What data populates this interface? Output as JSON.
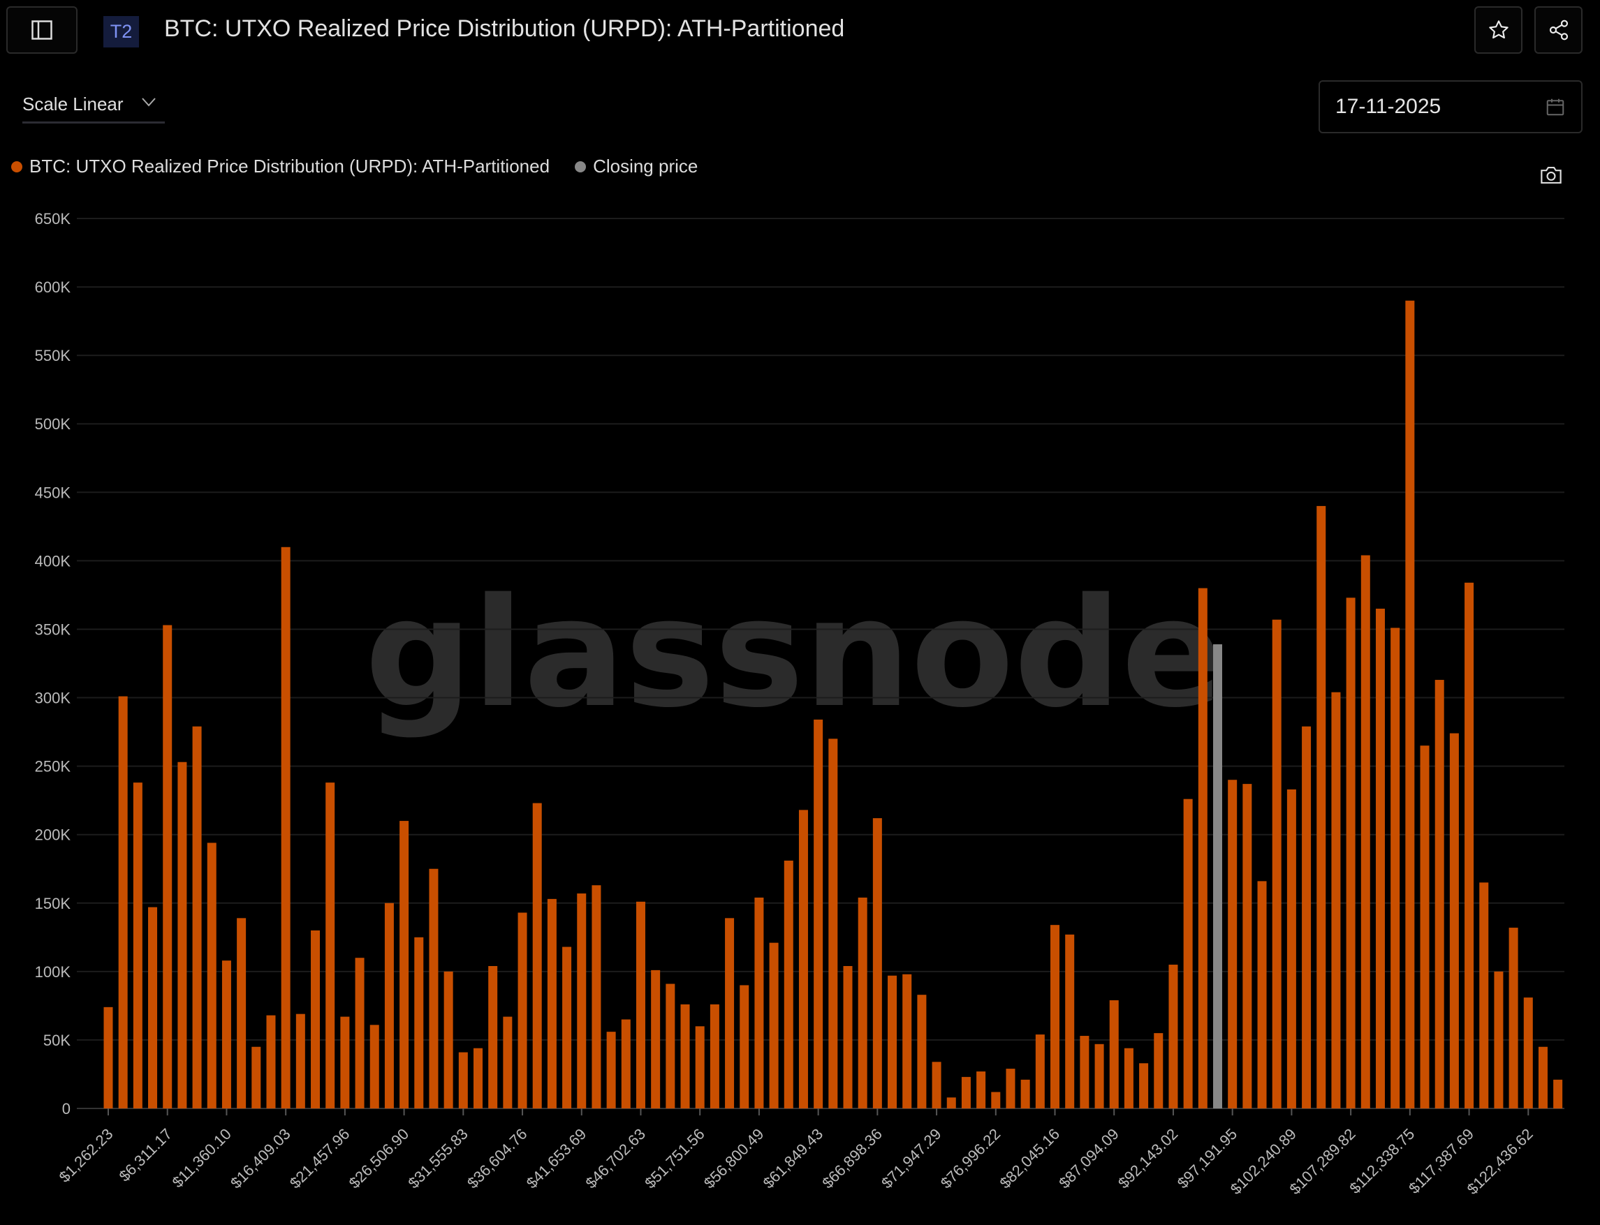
{
  "header": {
    "badge": "T2",
    "title": "BTC: UTXO Realized Price Distribution (URPD): ATH-Partitioned"
  },
  "controls": {
    "scale_label": "Scale Linear",
    "date_value": "17-11-2025"
  },
  "legend": [
    {
      "label": "BTC: UTXO Realized Price Distribution (URPD): ATH-Partitioned",
      "color": "#c94f00"
    },
    {
      "label": "Closing price",
      "color": "#888888"
    }
  ],
  "watermark": "glassnode",
  "chart_data": {
    "type": "bar",
    "title": "BTC: UTXO Realized Price Distribution (URPD): ATH-Partitioned",
    "xlabel": "",
    "ylabel": "",
    "ylim": [
      0,
      650000
    ],
    "grid": true,
    "legend_position": "top-left",
    "bin_width": 1262.23,
    "yticks": [
      "0",
      "50K",
      "100K",
      "150K",
      "200K",
      "250K",
      "300K",
      "350K",
      "400K",
      "450K",
      "500K",
      "550K",
      "600K",
      "650K"
    ],
    "xtick_labels": [
      "$1,262.23",
      "$6,311.17",
      "$11,360.10",
      "$16,409.03",
      "$21,457.96",
      "$26,506.90",
      "$31,555.83",
      "$36,604.76",
      "$41,653.69",
      "$46,702.63",
      "$51,751.56",
      "$56,800.49",
      "$61,849.43",
      "$66,898.36",
      "$71,947.29",
      "$76,996.22",
      "$82,045.16",
      "$87,094.09",
      "$92,143.02",
      "$97,191.95",
      "$102,240.89",
      "$107,289.82",
      "$112,338.75",
      "$117,387.69",
      "$122,436.62"
    ],
    "closing_price_bin_index": 75,
    "values": [
      74000,
      301000,
      238000,
      147000,
      353000,
      253000,
      279000,
      194000,
      108000,
      139000,
      45000,
      68000,
      410000,
      69000,
      130000,
      238000,
      67000,
      110000,
      61000,
      150000,
      210000,
      125000,
      175000,
      100000,
      41000,
      44000,
      104000,
      67000,
      143000,
      223000,
      153000,
      118000,
      157000,
      163000,
      56000,
      65000,
      151000,
      101000,
      91000,
      76000,
      60000,
      76000,
      139000,
      90000,
      154000,
      121000,
      181000,
      218000,
      284000,
      270000,
      104000,
      154000,
      212000,
      97000,
      98000,
      83000,
      34000,
      8000,
      23000,
      27000,
      12000,
      29000,
      21000,
      54000,
      134000,
      127000,
      53000,
      47000,
      79000,
      44000,
      33000,
      55000,
      105000,
      226000,
      380000,
      339000,
      240000,
      237000,
      166000,
      357000,
      233000,
      279000,
      440000,
      304000,
      373000,
      404000,
      365000,
      351000,
      590000,
      265000,
      313000,
      274000,
      384000,
      165000,
      100000,
      132000,
      81000,
      45000,
      21000
    ],
    "series_colors": {
      "urpd": "#c94f00",
      "closing": "#888888"
    }
  }
}
